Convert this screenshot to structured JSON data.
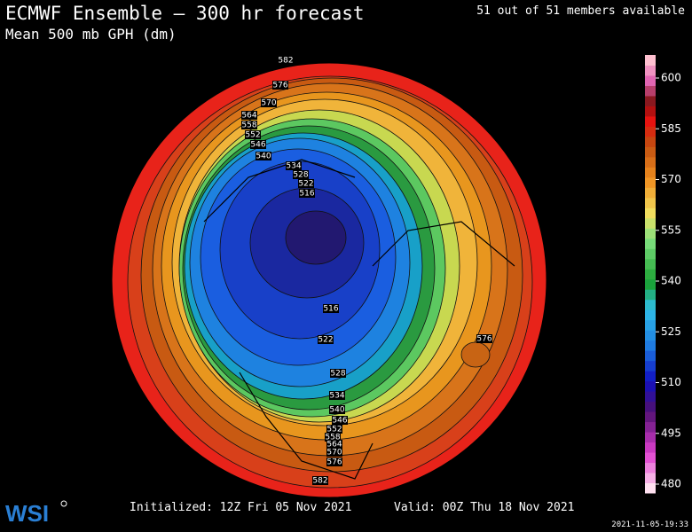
{
  "header": {
    "title": "ECMWF Ensemble — 300 hr forecast",
    "subtitle": "Mean 500 mb GPH (dm)",
    "members": "51 out of 51 members available"
  },
  "contour_labels": [
    "582",
    "576",
    "570",
    "564",
    "558",
    "552",
    "546",
    "540",
    "534",
    "528",
    "522",
    "516",
    "516",
    "522",
    "528",
    "534",
    "540",
    "546",
    "552",
    "558",
    "564",
    "570",
    "576",
    "582",
    "576"
  ],
  "colorbar": {
    "ticks": [
      600,
      585,
      570,
      555,
      540,
      525,
      510,
      495,
      480
    ]
  },
  "footer": {
    "initialized": "Initialized: 12Z Fri 05 Nov 2021",
    "valid": "Valid: 00Z Thu 18 Nov 2021",
    "timestamp": "2021-11-05-19:33",
    "logo": "WSI"
  }
}
